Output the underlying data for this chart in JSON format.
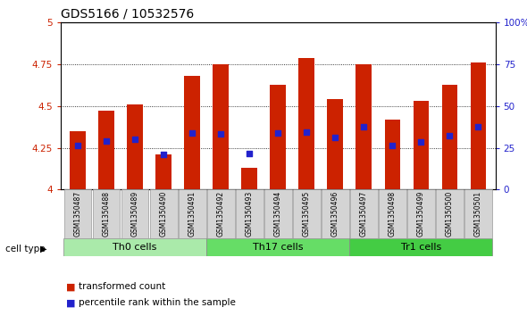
{
  "title": "GDS5166 / 10532576",
  "samples": [
    "GSM1350487",
    "GSM1350488",
    "GSM1350489",
    "GSM1350490",
    "GSM1350491",
    "GSM1350492",
    "GSM1350493",
    "GSM1350494",
    "GSM1350495",
    "GSM1350496",
    "GSM1350497",
    "GSM1350498",
    "GSM1350499",
    "GSM1350500",
    "GSM1350501"
  ],
  "bar_values": [
    4.35,
    4.47,
    4.51,
    4.21,
    4.68,
    4.75,
    4.13,
    4.63,
    4.79,
    4.54,
    4.75,
    4.42,
    4.53,
    4.63,
    4.76
  ],
  "percentile_values": [
    4.265,
    4.29,
    4.3,
    4.21,
    4.34,
    4.335,
    4.215,
    4.34,
    4.345,
    4.31,
    4.375,
    4.265,
    4.285,
    4.325,
    4.375
  ],
  "ylim": [
    4.0,
    5.0
  ],
  "yticks": [
    4.0,
    4.25,
    4.5,
    4.75,
    5.0
  ],
  "ytick_labels": [
    "4",
    "4.25",
    "4.5",
    "4.75",
    "5"
  ],
  "right_ytick_labels": [
    "0",
    "25",
    "50",
    "75",
    "100%"
  ],
  "bar_color": "#cc2200",
  "dot_color": "#2222cc",
  "groups": [
    {
      "label": "Th0 cells",
      "start": 0,
      "end": 5,
      "color": "#aaeaaa"
    },
    {
      "label": "Th17 cells",
      "start": 5,
      "end": 10,
      "color": "#66dd66"
    },
    {
      "label": "Tr1 cells",
      "start": 10,
      "end": 15,
      "color": "#44cc44"
    }
  ],
  "legend_items": [
    {
      "label": "transformed count",
      "color": "#cc2200"
    },
    {
      "label": "percentile rank within the sample",
      "color": "#2222cc"
    }
  ],
  "cell_type_label": "cell type",
  "plot_bg": "#ffffff",
  "title_fontsize": 10,
  "axis_fontsize": 7.5,
  "label_fontsize": 5.5,
  "group_fontsize": 8,
  "legend_fontsize": 7.5,
  "bar_width": 0.55
}
